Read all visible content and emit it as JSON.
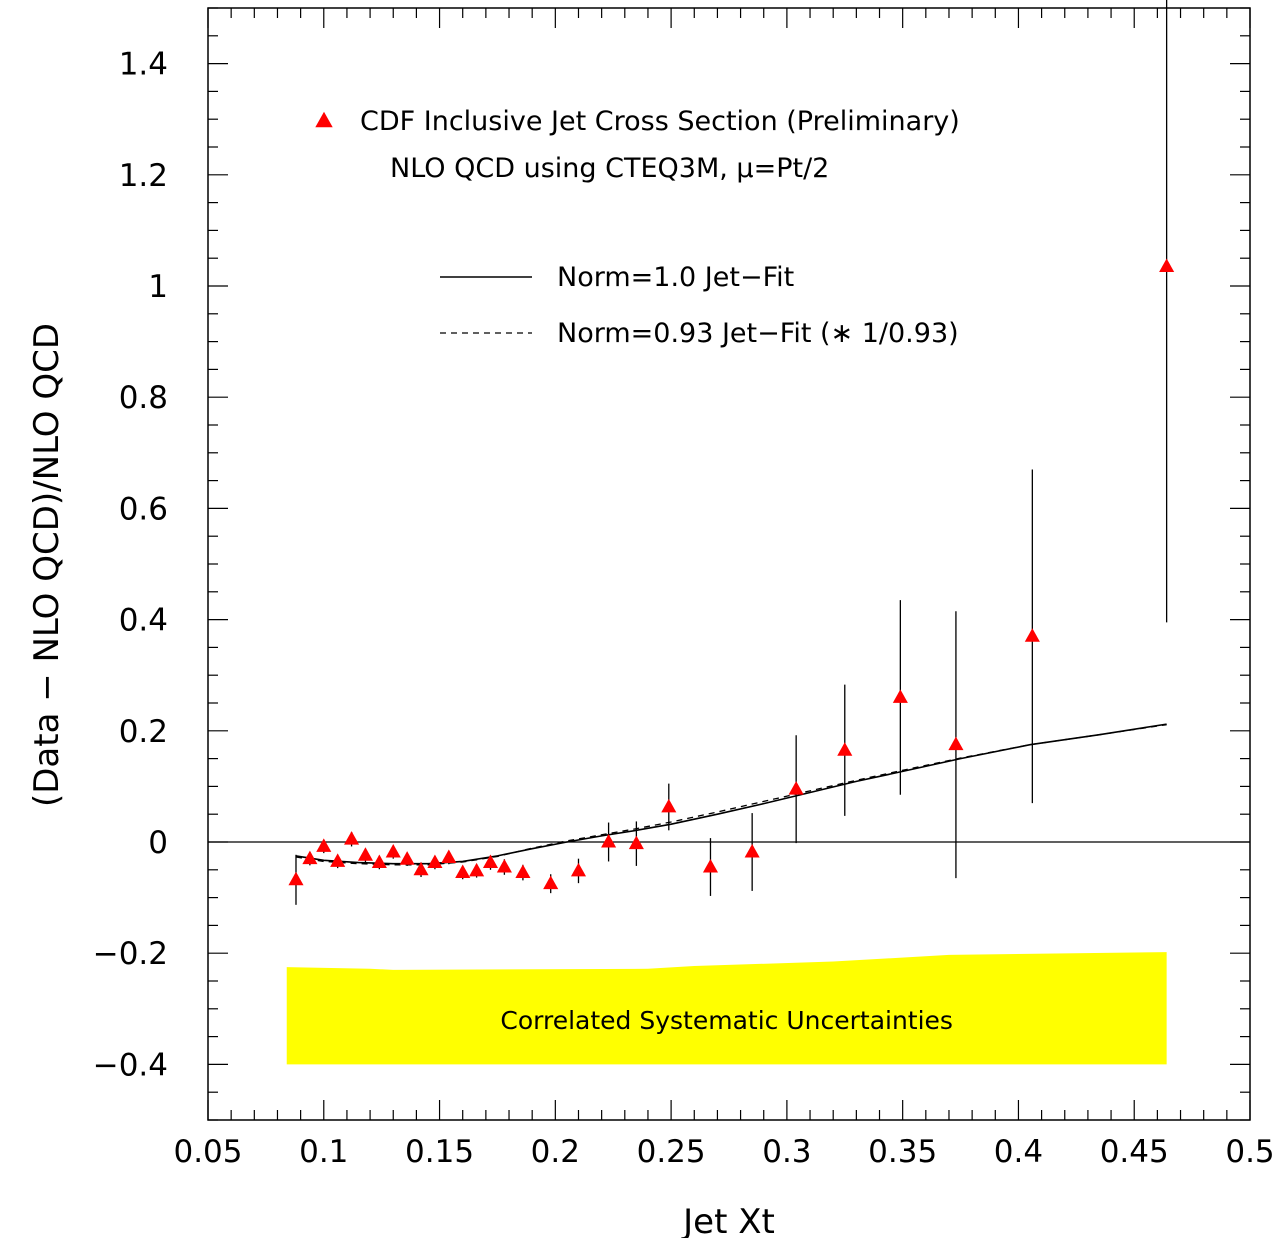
{
  "chart_data": {
    "type": "scatter",
    "title": "",
    "xlabel": "Jet Xt",
    "ylabel": "(Data − NLO QCD)/NLO QCD",
    "xlim": [
      0.05,
      0.5
    ],
    "ylim": [
      -0.5,
      1.5
    ],
    "xticks": [
      0.05,
      0.1,
      0.15,
      0.2,
      0.25,
      0.3,
      0.35,
      0.4,
      0.45,
      0.5
    ],
    "xtick_labels": [
      "0.05",
      "0.1",
      "0.15",
      "0.2",
      "0.25",
      "0.3",
      "0.35",
      "0.4",
      "0.45",
      "0.5"
    ],
    "yticks": [
      -0.4,
      -0.2,
      0,
      0.2,
      0.4,
      0.6,
      0.8,
      1.0,
      1.2,
      1.4
    ],
    "ytick_labels": [
      "−0.4",
      "−0.2",
      "0",
      "0.2",
      "0.4",
      "0.6",
      "0.8",
      "1",
      "1.2",
      "1.4"
    ],
    "grid": false,
    "legend_position": "top-left",
    "legend": {
      "data_label": "CDF Inclusive Jet Cross Section (Preliminary)",
      "subtitle": "NLO QCD using CTEQ3M, μ=Pt/2",
      "solid_label": "Norm=1.0 Jet−Fit",
      "dashed_label": "Norm=0.93 Jet−Fit (∗ 1/0.93)"
    },
    "colors": {
      "points": "#ff0000",
      "band": "#ffff00",
      "lines": "#000000"
    },
    "series": [
      {
        "name": "CDF Inclusive Jet Cross Section (Preliminary)",
        "marker": "triangle",
        "points": [
          {
            "x": 0.088,
            "y": -0.068,
            "err": 0.045
          },
          {
            "x": 0.094,
            "y": -0.03,
            "err": 0.012
          },
          {
            "x": 0.1,
            "y": -0.008,
            "err": 0.012
          },
          {
            "x": 0.106,
            "y": -0.035,
            "err": 0.012
          },
          {
            "x": 0.112,
            "y": 0.005,
            "err": 0.013
          },
          {
            "x": 0.118,
            "y": -0.024,
            "err": 0.012
          },
          {
            "x": 0.124,
            "y": -0.037,
            "err": 0.012
          },
          {
            "x": 0.13,
            "y": -0.018,
            "err": 0.012
          },
          {
            "x": 0.136,
            "y": -0.031,
            "err": 0.012
          },
          {
            "x": 0.142,
            "y": -0.05,
            "err": 0.013
          },
          {
            "x": 0.148,
            "y": -0.037,
            "err": 0.012
          },
          {
            "x": 0.154,
            "y": -0.028,
            "err": 0.012
          },
          {
            "x": 0.16,
            "y": -0.055,
            "err": 0.012
          },
          {
            "x": 0.166,
            "y": -0.052,
            "err": 0.012
          },
          {
            "x": 0.172,
            "y": -0.037,
            "err": 0.013
          },
          {
            "x": 0.178,
            "y": -0.045,
            "err": 0.014
          },
          {
            "x": 0.186,
            "y": -0.055,
            "err": 0.014
          },
          {
            "x": 0.198,
            "y": -0.075,
            "err": 0.017
          },
          {
            "x": 0.21,
            "y": -0.052,
            "err": 0.022
          },
          {
            "x": 0.223,
            "y": 0.0,
            "err": 0.035
          },
          {
            "x": 0.235,
            "y": -0.003,
            "err": 0.04
          },
          {
            "x": 0.249,
            "y": 0.063,
            "err": 0.042
          },
          {
            "x": 0.267,
            "y": -0.045,
            "err": 0.052
          },
          {
            "x": 0.285,
            "y": -0.018,
            "err": 0.07
          },
          {
            "x": 0.304,
            "y": 0.095,
            "err": 0.097
          },
          {
            "x": 0.325,
            "y": 0.165,
            "err": 0.118
          },
          {
            "x": 0.349,
            "y": 0.26,
            "err": 0.175
          },
          {
            "x": 0.373,
            "y": 0.175,
            "err": 0.24
          },
          {
            "x": 0.406,
            "y": 0.37,
            "err": 0.3
          },
          {
            "x": 0.464,
            "y": 1.035,
            "err": 0.64
          }
        ]
      },
      {
        "name": "Norm=1.0 Jet−Fit",
        "style": "solid",
        "x": [
          0.088,
          0.1,
          0.115,
          0.13,
          0.145,
          0.16,
          0.175,
          0.19,
          0.205,
          0.22,
          0.235,
          0.25,
          0.27,
          0.29,
          0.31,
          0.33,
          0.35,
          0.375,
          0.405,
          0.435,
          0.464
        ],
        "y": [
          -0.025,
          -0.033,
          -0.037,
          -0.039,
          -0.039,
          -0.035,
          -0.025,
          -0.012,
          0.0,
          0.011,
          0.021,
          0.032,
          0.05,
          0.069,
          0.089,
          0.109,
          0.127,
          0.15,
          0.175,
          0.193,
          0.212
        ]
      },
      {
        "name": "Norm=0.93 Jet−Fit (∗ 1/0.93)",
        "style": "dashed",
        "x": [
          0.088,
          0.1,
          0.115,
          0.13,
          0.145,
          0.16,
          0.175,
          0.19,
          0.205,
          0.22,
          0.235,
          0.25,
          0.27,
          0.29,
          0.31,
          0.33,
          0.35,
          0.375,
          0.405,
          0.435,
          0.464
        ],
        "y": [
          -0.027,
          -0.035,
          -0.039,
          -0.041,
          -0.041,
          -0.036,
          -0.026,
          -0.011,
          0.002,
          0.013,
          0.024,
          0.036,
          0.054,
          0.073,
          0.092,
          0.111,
          0.129,
          0.151,
          0.175,
          0.193,
          0.211
        ]
      }
    ],
    "reference_line_y": 0,
    "band": {
      "label": "Correlated Systematic Uncertainties",
      "x": [
        0.084,
        0.12,
        0.13,
        0.24,
        0.26,
        0.32,
        0.37,
        0.464
      ],
      "upper": [
        -0.225,
        -0.228,
        -0.23,
        -0.228,
        -0.223,
        -0.215,
        -0.203,
        -0.198
      ],
      "lower": -0.4
    }
  }
}
